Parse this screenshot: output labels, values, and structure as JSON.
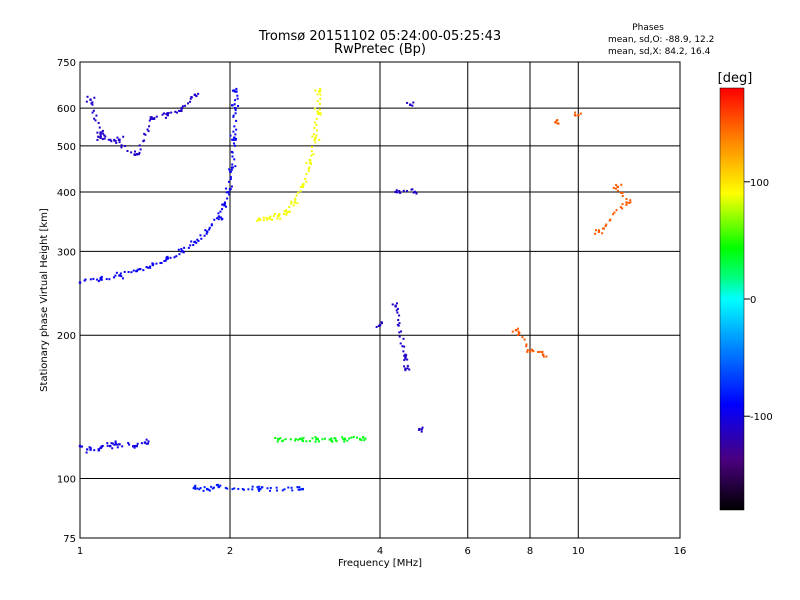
{
  "header": {
    "title_line1": "Tromsø 20151102 05:24:00-05:25:43",
    "title_line2": "RwPretec (Bp)"
  },
  "stats": {
    "label": "Phases",
    "line_o": "mean, sd,O:  -88.9, 12.2",
    "line_x": "mean, sd,X:  84.2, 16.4"
  },
  "colorbar": {
    "title": "[deg]",
    "ticks": [
      {
        "value": 100,
        "label": "100"
      },
      {
        "value": 0,
        "label": "0"
      },
      {
        "value": -100,
        "label": "-100"
      }
    ],
    "range": [
      -180,
      180
    ]
  },
  "chart_data": {
    "type": "scatter",
    "title": "Tromsø 20151102 05:24:00-05:25:43",
    "subtitle": "RwPretec (Bp)",
    "xlabel": "Frequency [MHz]",
    "ylabel": "Stationary phase Virtual Height [km]",
    "xscale": "log",
    "yscale": "log",
    "xlim": [
      1,
      16
    ],
    "ylim": [
      75,
      750
    ],
    "xticks": [
      1,
      2,
      4,
      6,
      8,
      10,
      16
    ],
    "xtick_labels": [
      "1",
      "2",
      "4",
      "6",
      "8",
      "10",
      "16"
    ],
    "yticks": [
      75,
      100,
      200,
      300,
      400,
      500,
      600,
      750
    ],
    "ytick_labels": [
      "75",
      "100",
      "200",
      "300",
      "400",
      "500",
      "600",
      "750"
    ],
    "grid": true,
    "color_variable": "phase [deg]",
    "color_range": [
      -180,
      180
    ],
    "traces": [
      {
        "desc": "O-mode trace",
        "phase": -95,
        "points": [
          [
            1.0,
            258
          ],
          [
            1.1,
            262
          ],
          [
            1.2,
            267
          ],
          [
            1.3,
            273
          ],
          [
            1.4,
            281
          ],
          [
            1.5,
            290
          ],
          [
            1.6,
            300
          ],
          [
            1.7,
            314
          ],
          [
            1.8,
            330
          ],
          [
            1.9,
            355
          ],
          [
            1.95,
            375
          ],
          [
            2.0,
            405
          ],
          [
            2.02,
            450
          ],
          [
            2.04,
            520
          ],
          [
            2.05,
            600
          ],
          [
            2.06,
            650
          ]
        ]
      },
      {
        "desc": "X-mode trace",
        "phase": 88,
        "points": [
          [
            2.3,
            350
          ],
          [
            2.4,
            352
          ],
          [
            2.5,
            356
          ],
          [
            2.6,
            362
          ],
          [
            2.7,
            380
          ],
          [
            2.8,
            410
          ],
          [
            2.9,
            460
          ],
          [
            2.97,
            520
          ],
          [
            3.0,
            590
          ],
          [
            3.02,
            650
          ]
        ]
      },
      {
        "desc": "low E-region echoes",
        "phase": -100,
        "points": [
          [
            1.0,
            117
          ],
          [
            1.05,
            115
          ],
          [
            1.1,
            116
          ],
          [
            1.15,
            117
          ],
          [
            1.2,
            118
          ],
          [
            1.3,
            117
          ],
          [
            1.35,
            119
          ]
        ]
      },
      {
        "desc": "sporadic low echoes",
        "phase": -80,
        "points": [
          [
            1.7,
            96
          ],
          [
            1.8,
            95
          ],
          [
            1.9,
            96
          ],
          [
            2.3,
            95
          ],
          [
            2.8,
            95
          ]
        ]
      },
      {
        "desc": "X-mode low echoes",
        "phase": 40,
        "points": [
          [
            2.5,
            121
          ],
          [
            2.8,
            120
          ],
          [
            3.0,
            121
          ],
          [
            3.2,
            120
          ],
          [
            3.4,
            121
          ],
          [
            3.7,
            122
          ]
        ]
      },
      {
        "desc": "upper scattered O",
        "phase": -110,
        "points": [
          [
            1.05,
            625
          ],
          [
            1.1,
            530
          ],
          [
            1.3,
            480
          ],
          [
            1.4,
            570
          ],
          [
            1.5,
            580
          ],
          [
            1.6,
            600
          ],
          [
            1.7,
            640
          ],
          [
            1.1,
            520
          ],
          [
            1.2,
            515
          ]
        ]
      },
      {
        "desc": "high-frequency scatter",
        "phase": 150,
        "points": [
          [
            7.5,
            205
          ],
          [
            8.0,
            185
          ],
          [
            8.5,
            182
          ],
          [
            10.0,
            580
          ],
          [
            12.0,
            410
          ],
          [
            12.5,
            380
          ],
          [
            11.0,
            330
          ],
          [
            9.0,
            560
          ]
        ]
      },
      {
        "desc": "mid-frequency scatter",
        "phase": -110,
        "points": [
          [
            4.3,
            400
          ],
          [
            4.7,
            400
          ],
          [
            4.6,
            610
          ],
          [
            4.3,
            230
          ],
          [
            4.5,
            180
          ],
          [
            4.5,
            170
          ],
          [
            4.8,
            127
          ],
          [
            4.0,
            210
          ]
        ]
      }
    ]
  }
}
